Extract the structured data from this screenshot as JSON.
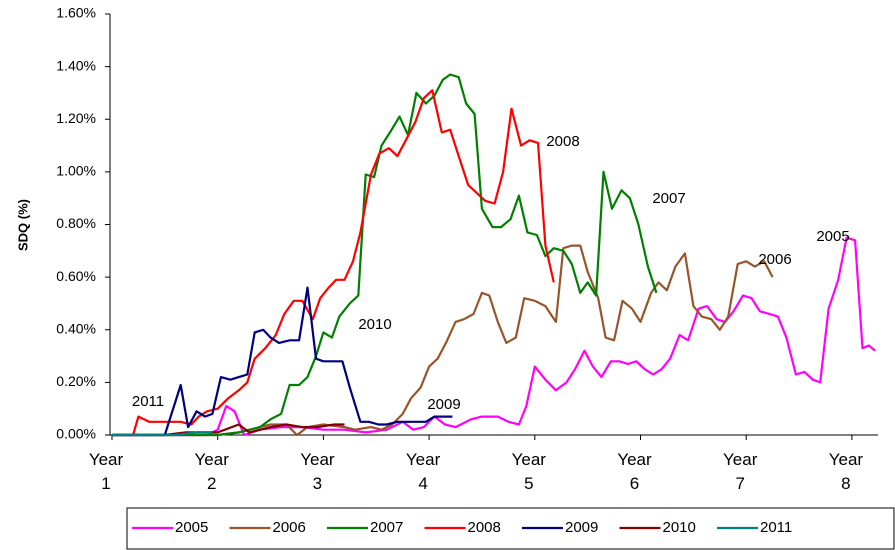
{
  "chart_data": {
    "type": "line",
    "y_label": "SDQ (%)",
    "xlim": [
      1,
      8.25
    ],
    "ylim": [
      0,
      1.6
    ],
    "xticks": [
      {
        "value": 1,
        "label": "Year 1"
      },
      {
        "value": 2,
        "label": "Year 2"
      },
      {
        "value": 3,
        "label": "Year 3"
      },
      {
        "value": 4,
        "label": "Year 4"
      },
      {
        "value": 5,
        "label": "Year 5"
      },
      {
        "value": 6,
        "label": "Year 6"
      },
      {
        "value": 7,
        "label": "Year 7"
      },
      {
        "value": 8,
        "label": "Year 8"
      }
    ],
    "yticks": [
      {
        "value": 0,
        "label": "0.00%"
      },
      {
        "value": 0.2,
        "label": "0.20%"
      },
      {
        "value": 0.4,
        "label": "0.40%"
      },
      {
        "value": 0.6,
        "label": "0.60%"
      },
      {
        "value": 0.8,
        "label": "0.80%"
      },
      {
        "value": 1.0,
        "label": "1.00%"
      },
      {
        "value": 1.2,
        "label": "1.20%"
      },
      {
        "value": 1.4,
        "label": "1.40%"
      },
      {
        "value": 1.6,
        "label": "1.60%"
      }
    ],
    "annotations": [
      "2011",
      "2010",
      "2009",
      "2008",
      "2007",
      "2006",
      "2005"
    ],
    "legend": "bottom",
    "series": [
      {
        "name": "2005",
        "color": "#ff00ff",
        "x": [
          1,
          1.9,
          2.0,
          2.08,
          2.16,
          2.25,
          2.4,
          2.6,
          2.8,
          3.0,
          3.2,
          3.4,
          3.6,
          3.75,
          3.85,
          3.95,
          4.05,
          4.15,
          4.25,
          4.4,
          4.5,
          4.65,
          4.75,
          4.85,
          4.92,
          5.0,
          5.1,
          5.2,
          5.3,
          5.38,
          5.47,
          5.55,
          5.63,
          5.72,
          5.8,
          5.88,
          5.96,
          6.04,
          6.12,
          6.2,
          6.28,
          6.37,
          6.45,
          6.55,
          6.63,
          6.72,
          6.8,
          6.88,
          6.97,
          7.05,
          7.13,
          7.22,
          7.3,
          7.38,
          7.47,
          7.55,
          7.63,
          7.7,
          7.78,
          7.87,
          7.95,
          8.03,
          8.1,
          8.16,
          8.22
        ],
        "values": [
          0,
          0,
          0.02,
          0.11,
          0.09,
          0.0,
          0.02,
          0.03,
          0.03,
          0.02,
          0.02,
          0.01,
          0.02,
          0.05,
          0.02,
          0.03,
          0.07,
          0.04,
          0.03,
          0.06,
          0.07,
          0.07,
          0.05,
          0.04,
          0.11,
          0.26,
          0.21,
          0.17,
          0.2,
          0.25,
          0.32,
          0.26,
          0.22,
          0.28,
          0.28,
          0.27,
          0.28,
          0.25,
          0.23,
          0.25,
          0.29,
          0.38,
          0.36,
          0.48,
          0.49,
          0.44,
          0.43,
          0.47,
          0.53,
          0.52,
          0.47,
          0.46,
          0.45,
          0.37,
          0.23,
          0.24,
          0.21,
          0.2,
          0.48,
          0.59,
          0.75,
          0.74,
          0.33,
          0.34,
          0.32
        ]
      },
      {
        "name": "2006",
        "color": "#99552a",
        "x": [
          1,
          2.0,
          2.2,
          2.4,
          2.5,
          2.65,
          2.75,
          2.85,
          3.0,
          3.2,
          3.3,
          3.45,
          3.55,
          3.65,
          3.75,
          3.83,
          3.92,
          4.0,
          4.08,
          4.16,
          4.25,
          4.33,
          4.42,
          4.5,
          4.57,
          4.65,
          4.73,
          4.82,
          4.9,
          5.0,
          5.1,
          5.2,
          5.27,
          5.35,
          5.43,
          5.5,
          5.6,
          5.67,
          5.75,
          5.83,
          5.92,
          6.0,
          6.1,
          6.17,
          6.25,
          6.33,
          6.42,
          6.5,
          6.58,
          6.67,
          6.75,
          6.83,
          6.92,
          7.0,
          7.08,
          7.17,
          7.25
        ],
        "values": [
          0,
          0,
          0.01,
          0.03,
          0.04,
          0.04,
          0.0,
          0.03,
          0.04,
          0.03,
          0.02,
          0.03,
          0.02,
          0.04,
          0.08,
          0.14,
          0.18,
          0.26,
          0.29,
          0.35,
          0.43,
          0.44,
          0.46,
          0.54,
          0.53,
          0.43,
          0.35,
          0.37,
          0.52,
          0.51,
          0.49,
          0.43,
          0.71,
          0.72,
          0.72,
          0.62,
          0.52,
          0.37,
          0.36,
          0.51,
          0.48,
          0.43,
          0.54,
          0.58,
          0.55,
          0.64,
          0.69,
          0.49,
          0.45,
          0.44,
          0.4,
          0.45,
          0.65,
          0.66,
          0.64,
          0.66,
          0.6
        ]
      },
      {
        "name": "2007",
        "color": "#008000",
        "x": [
          1,
          2,
          2.2,
          2.4,
          2.5,
          2.6,
          2.68,
          2.77,
          2.85,
          2.93,
          3.0,
          3.08,
          3.15,
          3.25,
          3.33,
          3.4,
          3.48,
          3.55,
          3.63,
          3.72,
          3.8,
          3.88,
          3.97,
          4.05,
          4.13,
          4.2,
          4.28,
          4.35,
          4.43,
          4.5,
          4.6,
          4.68,
          4.77,
          4.85,
          4.93,
          5.02,
          5.1,
          5.18,
          5.27,
          5.35,
          5.43,
          5.5,
          5.58,
          5.65,
          5.73,
          5.82,
          5.9,
          5.98,
          6.07,
          6.15
        ],
        "values": [
          0,
          0,
          0.01,
          0.03,
          0.06,
          0.08,
          0.19,
          0.19,
          0.22,
          0.3,
          0.39,
          0.37,
          0.45,
          0.5,
          0.53,
          0.99,
          0.98,
          1.1,
          1.15,
          1.21,
          1.14,
          1.3,
          1.26,
          1.29,
          1.35,
          1.37,
          1.36,
          1.26,
          1.22,
          0.86,
          0.79,
          0.79,
          0.82,
          0.91,
          0.77,
          0.76,
          0.68,
          0.71,
          0.7,
          0.65,
          0.54,
          0.58,
          0.53,
          1.0,
          0.86,
          0.93,
          0.9,
          0.8,
          0.64,
          0.54
        ]
      },
      {
        "name": "2008",
        "color": "#ff0000",
        "x": [
          1,
          1.2,
          1.25,
          1.35,
          1.45,
          1.55,
          1.65,
          1.75,
          1.82,
          1.9,
          2.0,
          2.1,
          2.2,
          2.28,
          2.35,
          2.45,
          2.55,
          2.63,
          2.72,
          2.8,
          2.9,
          2.97,
          3.05,
          3.12,
          3.2,
          3.28,
          3.35,
          3.45,
          3.53,
          3.62,
          3.7,
          3.78,
          3.87,
          3.95,
          4.03,
          4.12,
          4.2,
          4.28,
          4.37,
          4.45,
          4.53,
          4.62,
          4.7,
          4.78,
          4.87,
          4.95,
          5.03,
          5.1,
          5.18
        ],
        "values": [
          0,
          0,
          0.07,
          0.05,
          0.05,
          0.05,
          0.05,
          0.04,
          0.07,
          0.09,
          0.1,
          0.14,
          0.17,
          0.2,
          0.29,
          0.33,
          0.38,
          0.46,
          0.51,
          0.51,
          0.44,
          0.52,
          0.56,
          0.59,
          0.59,
          0.66,
          0.77,
          0.99,
          1.07,
          1.09,
          1.06,
          1.12,
          1.19,
          1.28,
          1.31,
          1.15,
          1.16,
          1.06,
          0.95,
          0.92,
          0.89,
          0.88,
          1.0,
          1.24,
          1.1,
          1.12,
          1.11,
          0.72,
          0.58
        ]
      },
      {
        "name": "2009",
        "color": "#000080",
        "x": [
          1,
          1.5,
          1.65,
          1.72,
          1.8,
          1.88,
          1.95,
          2.03,
          2.12,
          2.2,
          2.28,
          2.35,
          2.43,
          2.5,
          2.58,
          2.68,
          2.77,
          2.85,
          2.93,
          3.0,
          3.1,
          3.18,
          3.25,
          3.35,
          3.43,
          3.52,
          3.6,
          3.7,
          3.8,
          3.88,
          3.97,
          4.05,
          4.15,
          4.22
        ],
        "values": [
          0,
          0,
          0.19,
          0.03,
          0.09,
          0.07,
          0.08,
          0.22,
          0.21,
          0.22,
          0.23,
          0.39,
          0.4,
          0.37,
          0.35,
          0.36,
          0.36,
          0.56,
          0.29,
          0.28,
          0.28,
          0.28,
          0.18,
          0.05,
          0.05,
          0.04,
          0.04,
          0.05,
          0.05,
          0.05,
          0.05,
          0.07,
          0.07,
          0.07
        ]
      },
      {
        "name": "2010",
        "color": "#800000",
        "x": [
          1,
          1.5,
          1.7,
          2.0,
          2.2,
          2.3,
          2.5,
          2.65,
          2.8,
          2.95,
          3.1,
          3.2
        ],
        "values": [
          0,
          0,
          0.01,
          0.01,
          0.04,
          0.01,
          0.03,
          0.04,
          0.03,
          0.03,
          0.04,
          0.04
        ]
      },
      {
        "name": "2011",
        "color": "#008080",
        "x": [
          1,
          1.6,
          1.8,
          1.95
        ],
        "values": [
          0,
          0,
          0.01,
          0.01
        ]
      }
    ]
  }
}
